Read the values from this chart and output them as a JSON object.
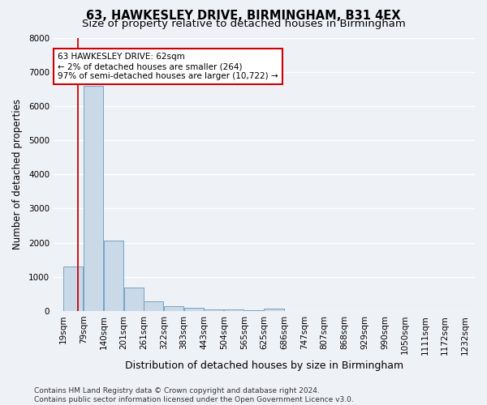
{
  "title1": "63, HAWKESLEY DRIVE, BIRMINGHAM, B31 4EX",
  "title2": "Size of property relative to detached houses in Birmingham",
  "xlabel": "Distribution of detached houses by size in Birmingham",
  "ylabel": "Number of detached properties",
  "footnote1": "Contains HM Land Registry data © Crown copyright and database right 2024.",
  "footnote2": "Contains public sector information licensed under the Open Government Licence v3.0.",
  "bins": [
    19,
    79,
    140,
    201,
    261,
    322,
    383,
    443,
    504,
    565,
    625,
    686,
    747,
    807,
    868,
    929,
    990,
    1050,
    1111,
    1172,
    1232
  ],
  "counts": [
    1300,
    6600,
    2050,
    680,
    280,
    150,
    90,
    50,
    35,
    20,
    75,
    5,
    3,
    2,
    1,
    1,
    1,
    1,
    1,
    1
  ],
  "bar_color": "#c9d9e8",
  "bar_edge_color": "#6699bb",
  "vline_x": 62,
  "vline_color": "#cc0000",
  "annotation_text": "63 HAWKESLEY DRIVE: 62sqm\n← 2% of detached houses are smaller (264)\n97% of semi-detached houses are larger (10,722) →",
  "annotation_box_color": "#ffffff",
  "annotation_box_edge": "#cc0000",
  "ylim": [
    0,
    8000
  ],
  "yticks": [
    0,
    1000,
    2000,
    3000,
    4000,
    5000,
    6000,
    7000,
    8000
  ],
  "bg_color": "#eef2f7",
  "grid_color": "#ffffff",
  "title1_fontsize": 10.5,
  "title2_fontsize": 9.5,
  "annotation_fontsize": 7.5,
  "xlabel_fontsize": 9,
  "ylabel_fontsize": 8.5,
  "tick_fontsize": 7.5,
  "footnote_fontsize": 6.5
}
